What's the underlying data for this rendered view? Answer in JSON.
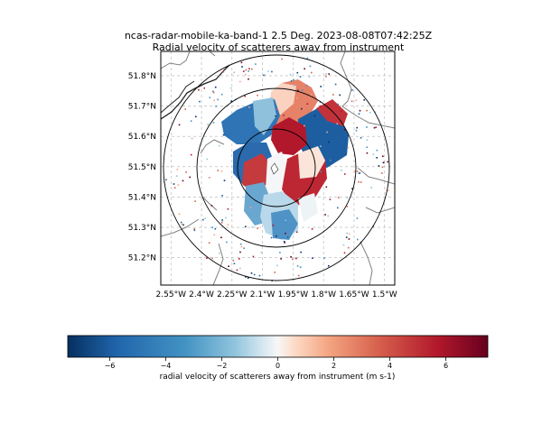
{
  "chart_data": {
    "type": "heatmap",
    "title": "ncas-radar-mobile-ka-band-1 2.5 Deg. 2023-08-08T07:42:25Z",
    "subtitle": "Radial velocity of scatterers away from instrument",
    "x_ticks": [
      "2.55°W",
      "2.4°W",
      "2.25°W",
      "2.1°W",
      "1.95°W",
      "1.8°W",
      "1.65°W",
      "1.5°W"
    ],
    "x_values": [
      -2.55,
      -2.4,
      -2.25,
      -2.1,
      -1.95,
      -1.8,
      -1.65,
      -1.5
    ],
    "y_ticks": [
      "51.8°N",
      "51.7°N",
      "51.6°N",
      "51.5°N",
      "51.4°N",
      "51.3°N",
      "51.2°N"
    ],
    "y_values": [
      51.8,
      51.7,
      51.6,
      51.5,
      51.4,
      51.3,
      51.2
    ],
    "xlim": [
      -2.6,
      -1.45
    ],
    "ylim": [
      51.11,
      51.88
    ],
    "grid": true,
    "radar_location": {
      "lon": -1.95,
      "lat": 51.5
    },
    "range_rings_deg_lat": [
      0.09,
      0.165,
      0.24
    ],
    "colorbar": {
      "label": "radial velocity of scatterers away from instrument (m s-1)",
      "ticks": [
        "−6",
        "−4",
        "−2",
        "0",
        "2",
        "4",
        "6"
      ],
      "tick_values": [
        -6,
        -4,
        -2,
        0,
        2,
        4,
        6
      ],
      "range": [
        -7.5,
        7.5
      ],
      "colormap": "RdBu_r"
    }
  },
  "colors": {
    "negative_max": "#053061",
    "negative_mid": "#2166ac",
    "neutral": "#f7f7f7",
    "positive_mid": "#d6604d",
    "positive_max": "#67001f",
    "grid": "#b0b0b0",
    "borders": "#808080",
    "rings": "#000000"
  }
}
